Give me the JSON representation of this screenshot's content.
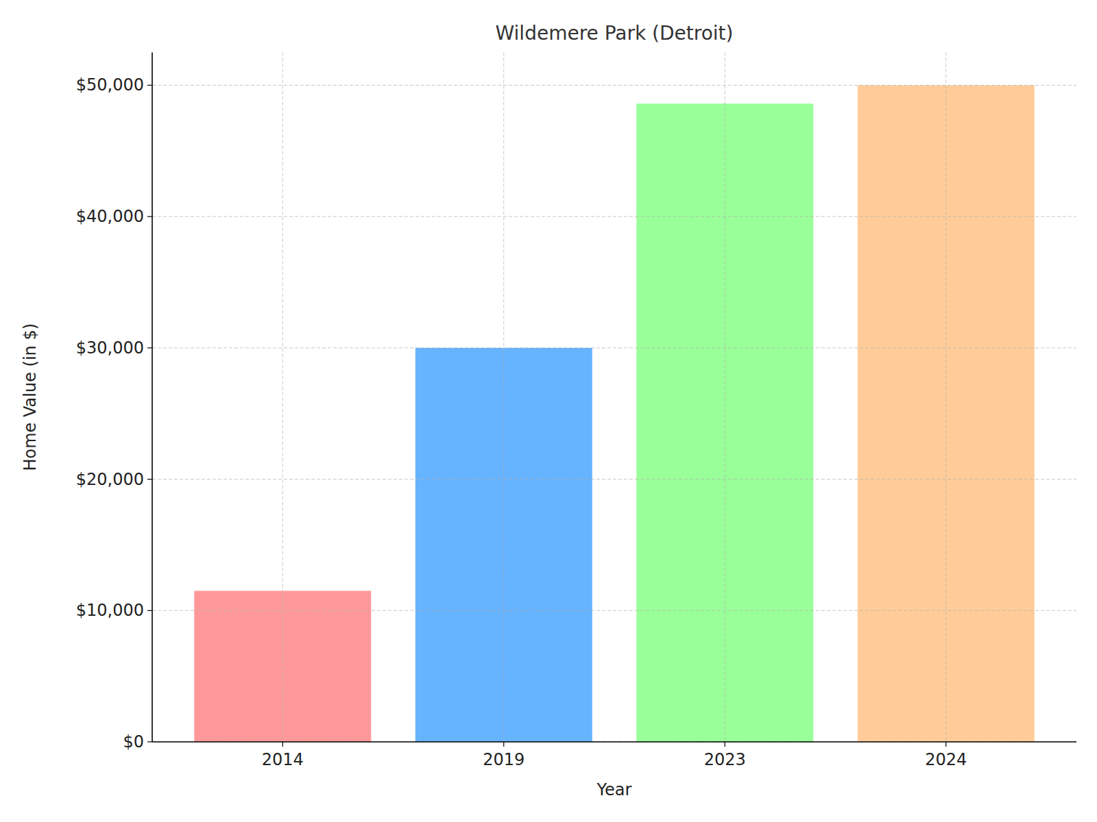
{
  "chart_data": {
    "type": "bar",
    "title": "Wildemere Park (Detroit)",
    "x_label": "Year",
    "y_label": "Home Value (in $)",
    "categories": [
      "2014",
      "2019",
      "2023",
      "2024"
    ],
    "values": [
      11500,
      30000,
      48600,
      50000
    ],
    "colors": [
      "#ff9999",
      "#66b3ff",
      "#99ff99",
      "#ffcc99"
    ],
    "ylim": [
      0,
      52500
    ],
    "yticks": [
      {
        "value": 0,
        "label": "$0"
      },
      {
        "value": 10000,
        "label": "$10,000"
      },
      {
        "value": 20000,
        "label": "$20,000"
      },
      {
        "value": 30000,
        "label": "$30,000"
      },
      {
        "value": 40000,
        "label": "$40,000"
      },
      {
        "value": 50000,
        "label": "$50,000"
      }
    ],
    "grid": true
  }
}
